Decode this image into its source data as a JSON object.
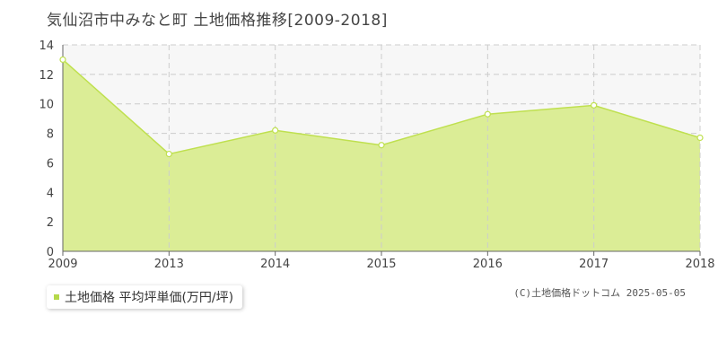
{
  "page": {
    "title": "気仙沼市中みなと町 土地価格推移[2009-2018]",
    "legend_label": "土地価格 平均坪単価(万円/坪)",
    "copyright": "(C)土地価格ドットコム 2025-05-05"
  },
  "chart_data": {
    "type": "area",
    "title": "気仙沼市中みなと町 土地価格推移[2009-2018]",
    "x": [
      2009,
      2013,
      2014,
      2015,
      2016,
      2017,
      2018
    ],
    "x_tick_labels": [
      "2009",
      "2013",
      "2014",
      "2015",
      "2016",
      "2017",
      "2018"
    ],
    "series": [
      {
        "name": "土地価格 平均坪単価(万円/坪)",
        "values": [
          13.0,
          6.6,
          8.2,
          7.2,
          9.3,
          9.9,
          7.7
        ]
      }
    ],
    "ylim": [
      0,
      14
    ],
    "y_ticks": [
      0,
      2,
      4,
      6,
      8,
      10,
      12,
      14
    ],
    "grid": true,
    "legend": "bottom-left",
    "colors": {
      "fill": "#dbed96",
      "line": "#bfe04f",
      "marker_fill": "#ffffff",
      "grid": "#cccccc",
      "plot_bg": "#f7f7f7"
    }
  }
}
